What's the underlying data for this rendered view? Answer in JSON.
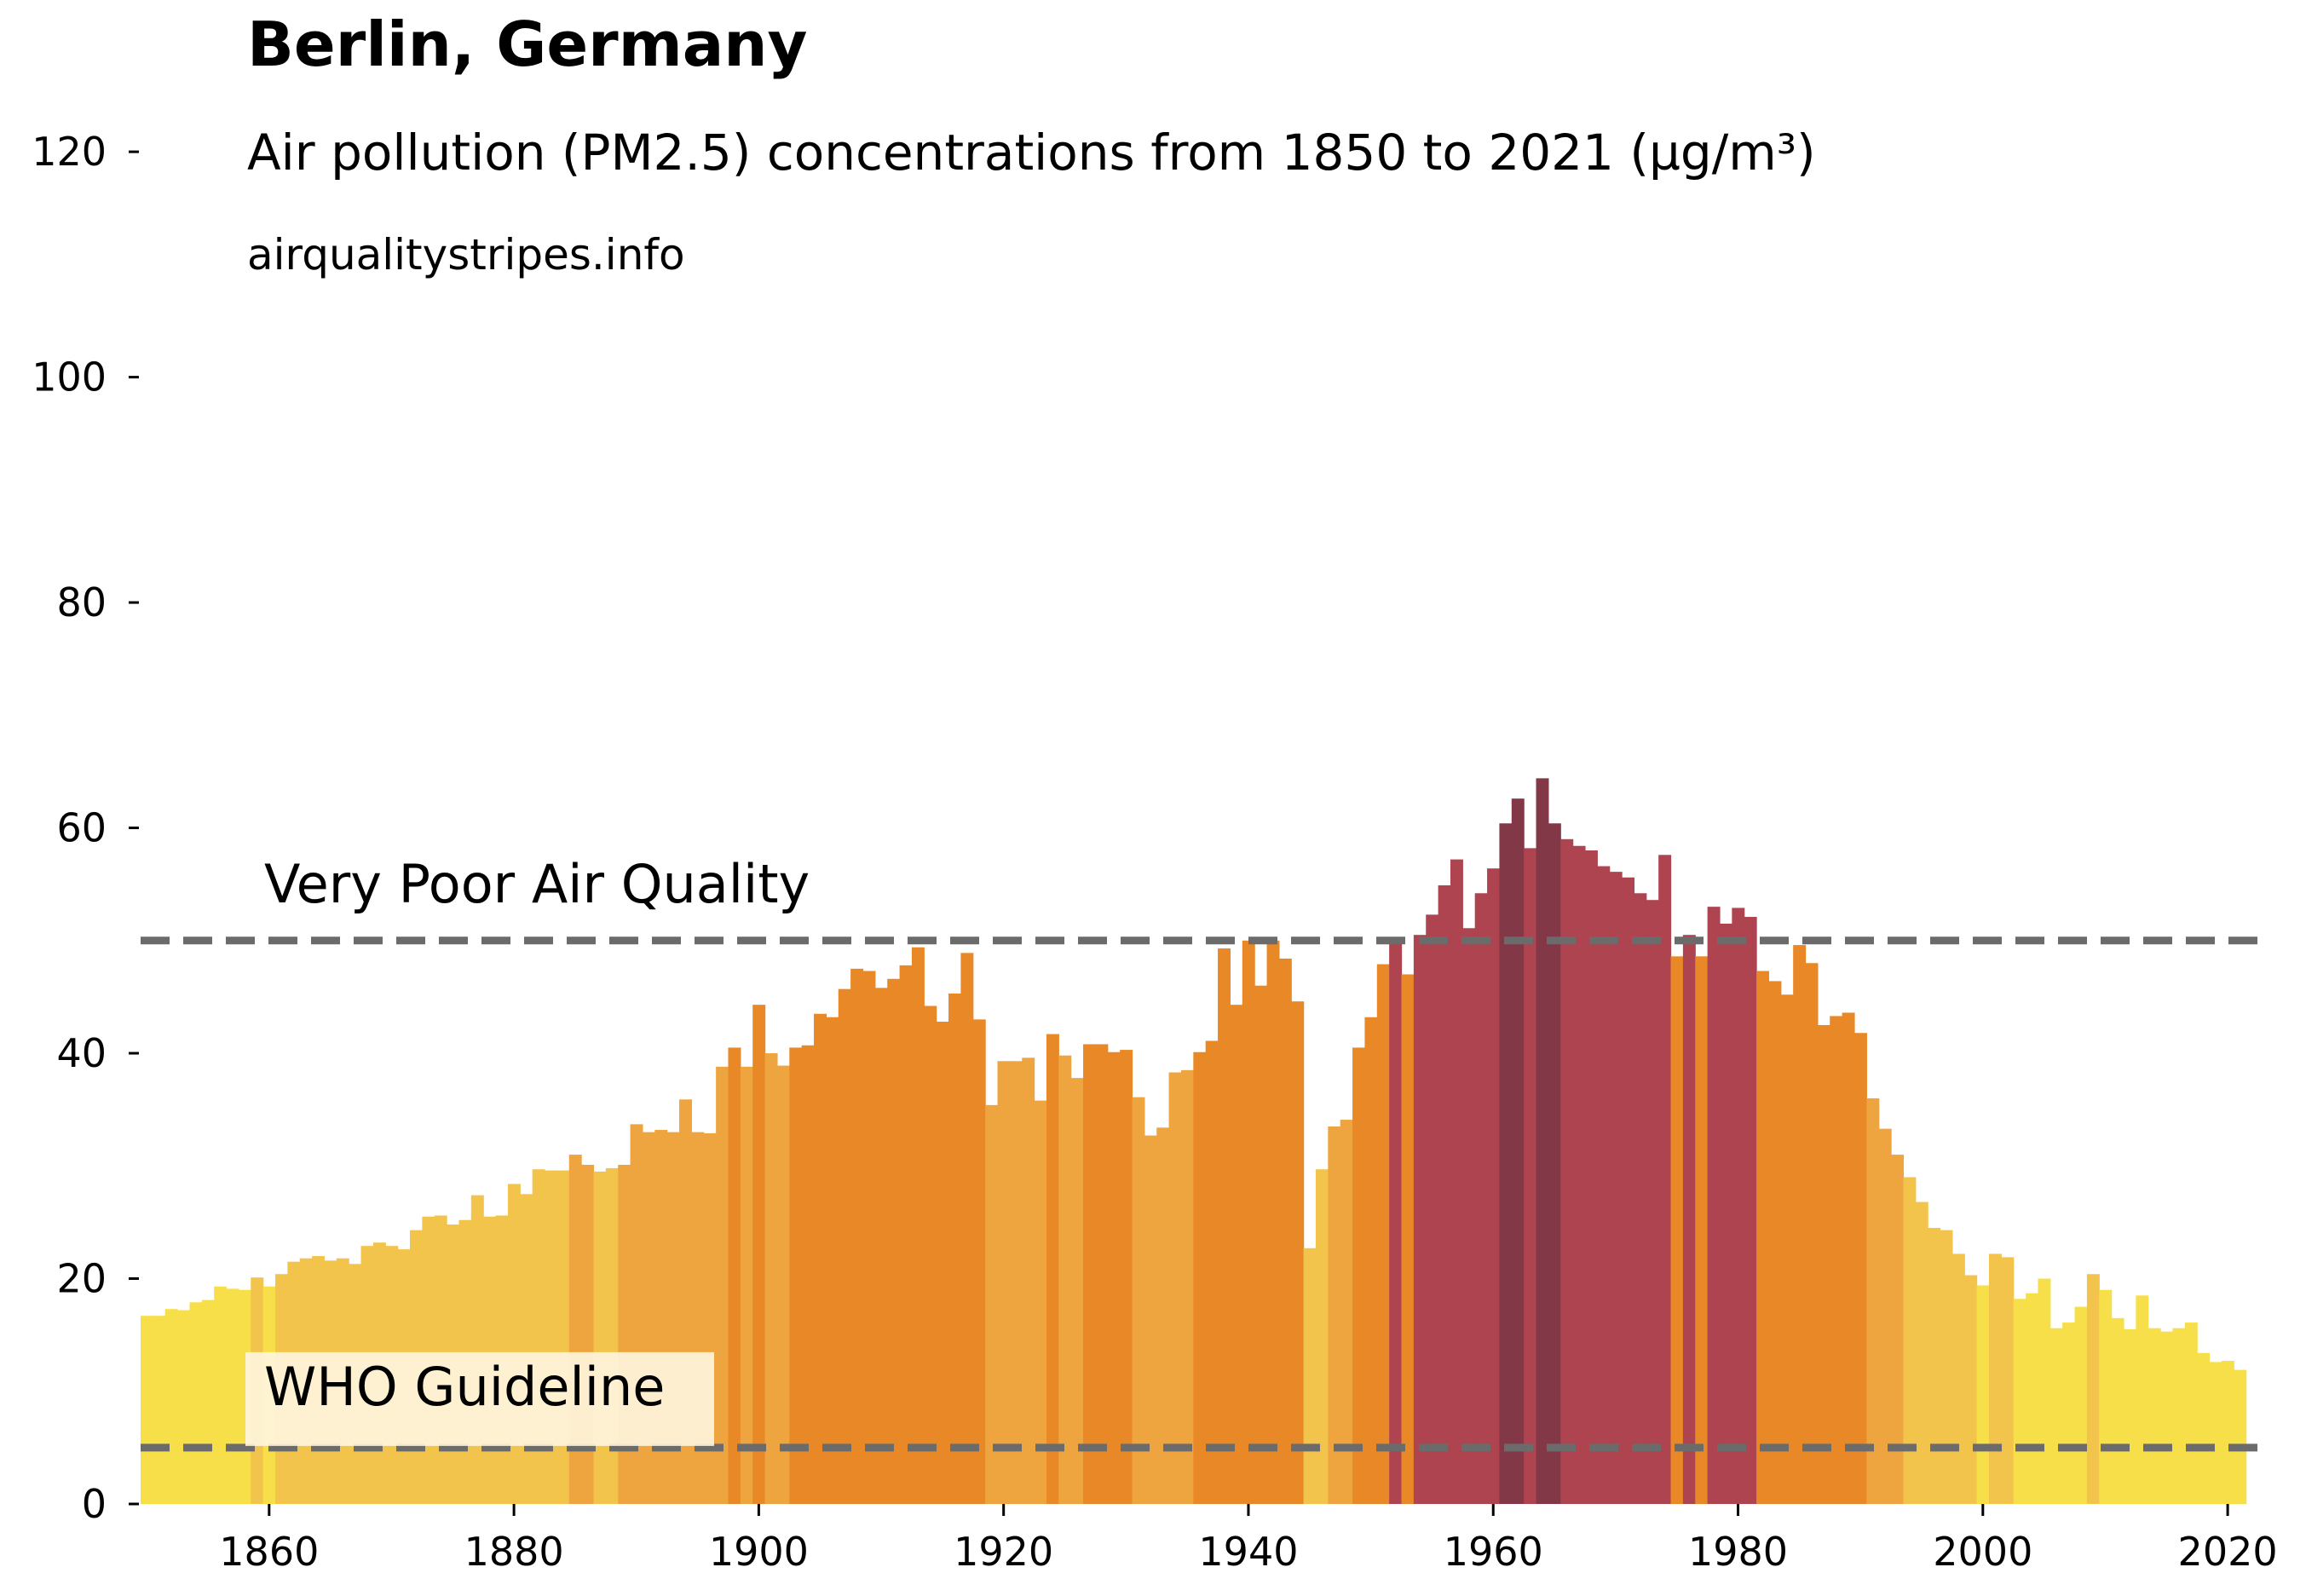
{
  "title": "Berlin, Germany",
  "subtitle": "Air pollution (PM2.5) concentrations from 1850 to 2021 (µg/m³)",
  "source": "airqualitystripes.info",
  "colors": {
    "background": "#ffffff",
    "reference_line": "#6b6b6b",
    "who_label_box": "#fff6e0",
    "category_scale": [
      {
        "max": 5,
        "color": "#b3d1ee"
      },
      {
        "max": 10,
        "color": "#b3d1ee"
      },
      {
        "max": 20,
        "color": "#f7df4a"
      },
      {
        "max": 30,
        "color": "#f2c44c"
      },
      {
        "max": 40,
        "color": "#efa53f"
      },
      {
        "max": 50,
        "color": "#e88826"
      },
      {
        "max": 60,
        "color": "#ad4450"
      },
      {
        "max": 1000,
        "color": "#833847"
      }
    ]
  },
  "chart_data": {
    "type": "bar",
    "x": [
      1850,
      1851,
      1852,
      1853,
      1854,
      1855,
      1856,
      1857,
      1858,
      1859,
      1860,
      1861,
      1862,
      1863,
      1864,
      1865,
      1866,
      1867,
      1868,
      1869,
      1870,
      1871,
      1872,
      1873,
      1874,
      1875,
      1876,
      1877,
      1878,
      1879,
      1880,
      1881,
      1882,
      1883,
      1884,
      1885,
      1886,
      1887,
      1888,
      1889,
      1890,
      1891,
      1892,
      1893,
      1894,
      1895,
      1896,
      1897,
      1898,
      1899,
      1900,
      1901,
      1902,
      1903,
      1904,
      1905,
      1906,
      1907,
      1908,
      1909,
      1910,
      1911,
      1912,
      1913,
      1914,
      1915,
      1916,
      1917,
      1918,
      1919,
      1920,
      1921,
      1922,
      1923,
      1924,
      1925,
      1926,
      1927,
      1928,
      1929,
      1930,
      1931,
      1932,
      1933,
      1934,
      1935,
      1936,
      1937,
      1938,
      1939,
      1940,
      1941,
      1942,
      1943,
      1944,
      1945,
      1946,
      1947,
      1948,
      1949,
      1950,
      1951,
      1952,
      1953,
      1954,
      1955,
      1956,
      1957,
      1958,
      1959,
      1960,
      1961,
      1962,
      1963,
      1964,
      1965,
      1966,
      1967,
      1968,
      1969,
      1970,
      1971,
      1972,
      1973,
      1974,
      1975,
      1976,
      1977,
      1978,
      1979,
      1980,
      1981,
      1982,
      1983,
      1984,
      1985,
      1986,
      1987,
      1988,
      1989,
      1990,
      1991,
      1992,
      1993,
      1994,
      1995,
      1996,
      1997,
      1998,
      1999,
      2000,
      2001,
      2002,
      2003,
      2004,
      2005,
      2006,
      2007,
      2008,
      2009,
      2010,
      2011,
      2012,
      2013,
      2014,
      2015,
      2016,
      2017,
      2018,
      2019,
      2020,
      2021
    ],
    "values": [
      16.7,
      16.7,
      17.3,
      17.2,
      17.9,
      18.1,
      19.3,
      19.1,
      19.0,
      20.1,
      19.3,
      20.4,
      21.5,
      21.8,
      22.0,
      21.6,
      21.8,
      21.3,
      22.9,
      23.2,
      22.9,
      22.6,
      24.3,
      25.5,
      25.6,
      24.8,
      25.2,
      27.4,
      25.5,
      25.6,
      28.4,
      27.5,
      29.7,
      29.6,
      29.6,
      31.0,
      30.1,
      29.5,
      29.8,
      30.1,
      33.7,
      33.0,
      33.2,
      33.0,
      35.9,
      33.0,
      32.9,
      38.8,
      40.5,
      38.8,
      44.3,
      40.0,
      38.9,
      40.5,
      40.7,
      43.5,
      43.2,
      45.7,
      47.5,
      47.3,
      45.8,
      46.6,
      47.8,
      49.4,
      44.2,
      42.8,
      45.3,
      48.9,
      43.0,
      35.4,
      39.3,
      39.3,
      39.6,
      35.8,
      41.7,
      39.8,
      37.8,
      40.8,
      40.8,
      40.1,
      40.3,
      36.1,
      32.7,
      33.4,
      38.3,
      38.5,
      40.1,
      41.1,
      49.3,
      44.3,
      50.0,
      46.0,
      50.0,
      48.4,
      44.6,
      22.7,
      29.7,
      33.5,
      34.1,
      40.5,
      43.2,
      47.9,
      50.2,
      47.0,
      50.5,
      52.3,
      54.9,
      57.2,
      51.1,
      54.2,
      56.4,
      60.4,
      62.6,
      58.2,
      64.4,
      60.4,
      59.0,
      58.4,
      58.0,
      56.6,
      56.1,
      55.6,
      54.2,
      53.6,
      57.6,
      48.6,
      50.5,
      48.6,
      53.0,
      51.5,
      52.9,
      52.1,
      47.3,
      46.4,
      45.2,
      49.6,
      48.0,
      42.5,
      43.3,
      43.6,
      41.8,
      36.0,
      33.3,
      31.0,
      29.0,
      26.8,
      24.5,
      24.3,
      22.2,
      20.3,
      19.4,
      22.2,
      21.9,
      18.2,
      18.7,
      20.0,
      15.6,
      16.1,
      17.5,
      20.4,
      19.0,
      16.5,
      15.5,
      18.5,
      15.6,
      15.3,
      15.6,
      16.1,
      13.4,
      12.6,
      12.7,
      11.9
    ],
    "x_ticks": [
      1860,
      1880,
      1900,
      1920,
      1940,
      1960,
      1980,
      2000,
      2020
    ],
    "y_ticks": [
      0,
      20,
      40,
      60,
      80,
      100,
      120
    ],
    "xlim": [
      1849.5,
      2022.5
    ],
    "ylim": [
      0,
      125
    ],
    "reference_lines": [
      {
        "label": "Very Poor Air Quality",
        "value": 50
      },
      {
        "label": "WHO Guideline",
        "value": 5
      }
    ],
    "grid": false
  }
}
